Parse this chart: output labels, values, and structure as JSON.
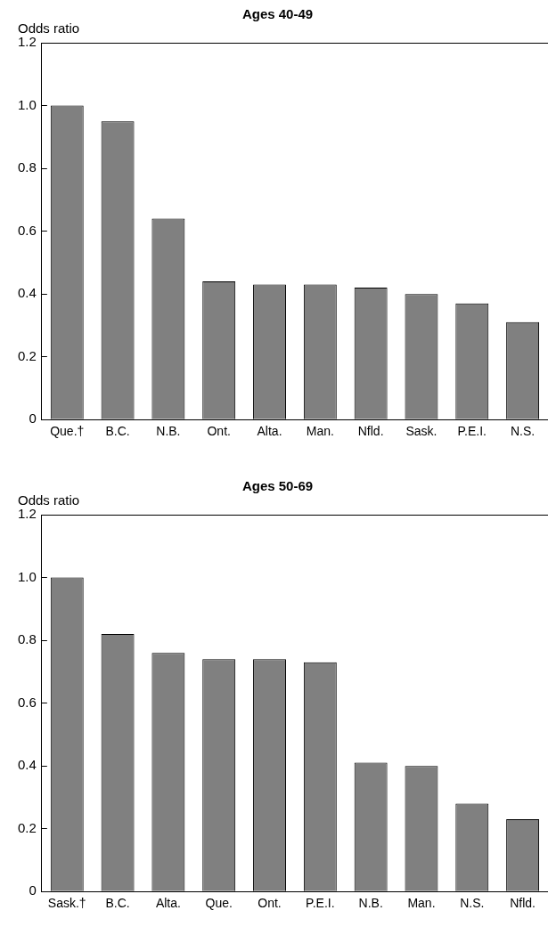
{
  "chart_data": [
    {
      "type": "bar",
      "title": "Ages 40-49",
      "ylabel": "Odds ratio",
      "categories": [
        "Que.†",
        "B.C.",
        "N.B.",
        "Ont.",
        "Alta.",
        "Man.",
        "Nfld.",
        "Sask.",
        "P.E.I.",
        "N.S."
      ],
      "values": [
        1.0,
        0.95,
        0.64,
        0.44,
        0.43,
        0.43,
        0.42,
        0.4,
        0.37,
        0.31
      ],
      "color": "#808080",
      "ylim": [
        0,
        1.2
      ],
      "yticks": [
        {
          "value": 0,
          "label": "0"
        },
        {
          "value": 0.2,
          "label": "0.2"
        },
        {
          "value": 0.4,
          "label": "0.4"
        },
        {
          "value": 0.6,
          "label": "0.6"
        },
        {
          "value": 0.8,
          "label": "0.8"
        },
        {
          "value": 1.0,
          "label": "1.0"
        },
        {
          "value": 1.2,
          "label": "1.2"
        }
      ],
      "grid": false,
      "legend": false
    },
    {
      "type": "bar",
      "title": "Ages 50-69",
      "ylabel": "Odds ratio",
      "categories": [
        "Sask.†",
        "B.C.",
        "Alta.",
        "Que.",
        "Ont.",
        "P.E.I.",
        "N.B.",
        "Man.",
        "N.S.",
        "Nfld."
      ],
      "values": [
        1.0,
        0.82,
        0.76,
        0.74,
        0.74,
        0.73,
        0.41,
        0.4,
        0.28,
        0.23
      ],
      "color": "#808080",
      "ylim": [
        0,
        1.2
      ],
      "yticks": [
        {
          "value": 0,
          "label": "0"
        },
        {
          "value": 0.2,
          "label": "0.2"
        },
        {
          "value": 0.4,
          "label": "0.4"
        },
        {
          "value": 0.6,
          "label": "0.6"
        },
        {
          "value": 0.8,
          "label": "0.8"
        },
        {
          "value": 1.0,
          "label": "1.0"
        },
        {
          "value": 1.2,
          "label": "1.2"
        }
      ],
      "grid": false,
      "legend": false
    }
  ]
}
